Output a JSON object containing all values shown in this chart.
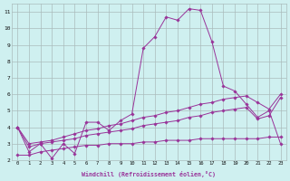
{
  "x": [
    0,
    1,
    2,
    3,
    4,
    5,
    6,
    7,
    8,
    9,
    10,
    11,
    12,
    13,
    14,
    15,
    16,
    17,
    18,
    19,
    20,
    21,
    22,
    23
  ],
  "line1": [
    4.0,
    2.5,
    3.0,
    2.1,
    3.0,
    2.4,
    4.3,
    4.3,
    3.8,
    4.4,
    4.8,
    8.8,
    9.5,
    10.7,
    10.5,
    11.2,
    11.1,
    9.2,
    6.5,
    6.2,
    5.4,
    4.6,
    5.0,
    3.0
  ],
  "line2": [
    4.0,
    3.0,
    3.1,
    3.2,
    3.4,
    3.6,
    3.8,
    3.9,
    4.1,
    4.2,
    4.4,
    4.6,
    4.7,
    4.9,
    5.0,
    5.2,
    5.4,
    5.5,
    5.7,
    5.8,
    5.9,
    5.5,
    5.1,
    6.0
  ],
  "line3": [
    4.0,
    2.8,
    3.0,
    3.1,
    3.2,
    3.3,
    3.5,
    3.6,
    3.7,
    3.8,
    3.9,
    4.1,
    4.2,
    4.3,
    4.4,
    4.6,
    4.7,
    4.9,
    5.0,
    5.1,
    5.2,
    4.5,
    4.7,
    5.8
  ],
  "line4": [
    2.3,
    2.3,
    2.5,
    2.6,
    2.7,
    2.8,
    2.9,
    2.9,
    3.0,
    3.0,
    3.0,
    3.1,
    3.1,
    3.2,
    3.2,
    3.2,
    3.3,
    3.3,
    3.3,
    3.3,
    3.3,
    3.3,
    3.4,
    3.4
  ],
  "bg_color": "#cff0f0",
  "line_color": "#993399",
  "grid_color": "#aabbbb",
  "xlabel": "Windchill (Refroidissement éolien,°C)",
  "ylim": [
    2,
    11.5
  ],
  "xlim": [
    -0.5,
    23.5
  ],
  "yticks": [
    2,
    3,
    4,
    5,
    6,
    7,
    8,
    9,
    10,
    11
  ],
  "xticks": [
    0,
    1,
    2,
    3,
    4,
    5,
    6,
    7,
    8,
    9,
    10,
    11,
    12,
    13,
    14,
    15,
    16,
    17,
    18,
    19,
    20,
    21,
    22,
    23
  ]
}
